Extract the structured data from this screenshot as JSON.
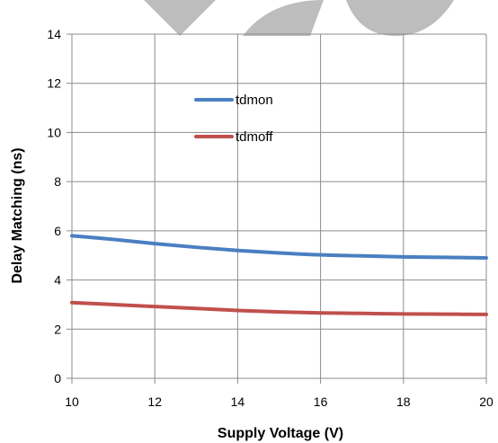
{
  "chart_data": {
    "type": "line",
    "title": "",
    "xlabel": "Supply Voltage (V)",
    "ylabel": "Delay Matching (ns)",
    "xlim": [
      10,
      20
    ],
    "ylim": [
      0,
      14
    ],
    "x_ticks": [
      10,
      12,
      14,
      16,
      18,
      20
    ],
    "y_ticks": [
      0,
      2,
      4,
      6,
      8,
      10,
      12,
      14
    ],
    "grid": "vertical and horizontal",
    "legend_position": "top-left inside plot",
    "x": [
      10,
      11,
      12,
      13,
      14,
      15,
      16,
      17,
      18,
      19,
      20
    ],
    "series": [
      {
        "name": "tdmon",
        "color": "#4a7fc1",
        "values": [
          5.8,
          5.65,
          5.48,
          5.33,
          5.2,
          5.1,
          5.02,
          4.98,
          4.94,
          4.92,
          4.9
        ]
      },
      {
        "name": "tdmoff",
        "color": "#c0504d",
        "values": [
          3.08,
          3.0,
          2.92,
          2.84,
          2.76,
          2.7,
          2.66,
          2.64,
          2.62,
          2.61,
          2.6
        ]
      }
    ]
  },
  "decoration": {
    "top_shapes_color": "#bdbdbd"
  }
}
